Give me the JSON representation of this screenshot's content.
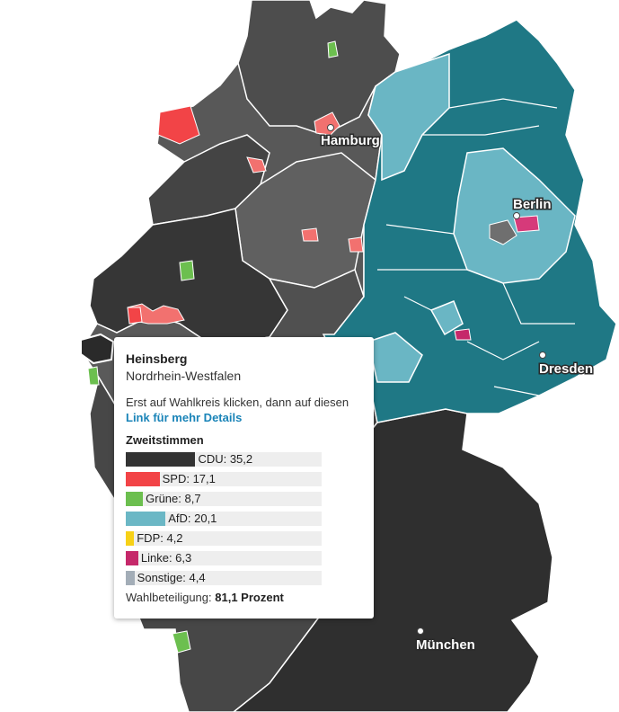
{
  "colors": {
    "cdu": "#333333",
    "spd": "#f24447",
    "gruene": "#6cbf4f",
    "afd_dark": "#1e7b87",
    "afd_light": "#6bb7c5",
    "fdp": "#f7d117",
    "linke": "#c5286a",
    "sonstige": "#a3adb7",
    "gray_dark": "#4a4a4a",
    "gray_mid": "#5f5f5f",
    "gray_light": "#7a7a7a"
  },
  "cities": [
    {
      "name": "Hamburg"
    },
    {
      "name": "Berlin"
    },
    {
      "name": "Dresden"
    },
    {
      "name": "München"
    }
  ],
  "tooltip": {
    "title": "Heinsberg",
    "state": "Nordrhein-Westfalen",
    "instruction": "Erst auf Wahlkreis klicken, dann auf diesen ",
    "link_text": "Link für mehr Details",
    "section_title": "Zweitstimmen",
    "results": [
      {
        "party": "CDU",
        "value": 35.2,
        "text": "CDU: 35,2",
        "color": "#333333"
      },
      {
        "party": "SPD",
        "value": 17.1,
        "text": "SPD: 17,1",
        "color": "#f24447"
      },
      {
        "party": "Grüne",
        "value": 8.7,
        "text": "Grüne: 8,7",
        "color": "#6cbf4f"
      },
      {
        "party": "AfD",
        "value": 20.1,
        "text": "AfD: 20,1",
        "color": "#6bb7c5"
      },
      {
        "party": "FDP",
        "value": 4.2,
        "text": "FDP: 4,2",
        "color": "#f7d117"
      },
      {
        "party": "Linke",
        "value": 6.3,
        "text": "Linke: 6,3",
        "color": "#c5286a"
      },
      {
        "party": "Sonstige",
        "value": 4.4,
        "text": "Sonstige: 4,4",
        "color": "#a3adb7"
      }
    ],
    "turnout_label": "Wahlbeteiligung: ",
    "turnout_value": "81,1 Prozent"
  }
}
